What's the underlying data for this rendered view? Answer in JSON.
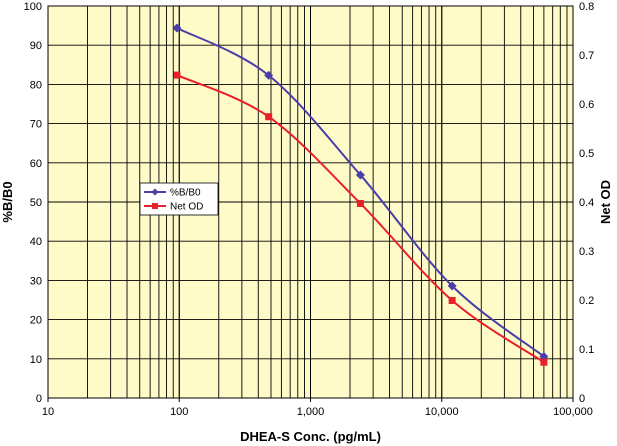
{
  "chart_data": {
    "type": "line",
    "xscale": "log",
    "xlim": [
      10,
      100000
    ],
    "xticks": [
      "10",
      "100",
      "1,000",
      "10,000",
      "100,000"
    ],
    "xlabel": "DHEA-S Conc. (pg/mL)",
    "y_left": {
      "label": "%B/B0",
      "lim": [
        0,
        100
      ],
      "ticks": [
        "0",
        "10",
        "20",
        "30",
        "40",
        "50",
        "60",
        "70",
        "80",
        "90",
        "100"
      ]
    },
    "y_right": {
      "label": "Net OD",
      "lim": [
        0,
        0.8
      ],
      "ticks": [
        "0",
        "0.1",
        "0.2",
        "0.3",
        "0.4",
        "0.5",
        "0.6",
        "0.7",
        "0.8"
      ]
    },
    "grid": true,
    "legend_position": "left-middle",
    "colors": {
      "background": "#fffbc8",
      "grid": "#000000",
      "b_b0": "#4a3fa8",
      "net_od": "#e8202a"
    },
    "series": [
      {
        "name": "%B/B0",
        "axis": "left",
        "marker": "diamond",
        "x": [
          96,
          480,
          2400,
          12000,
          60000
        ],
        "y": [
          94.4,
          82.3,
          56.9,
          28.6,
          10.6
        ]
      },
      {
        "name": "Net OD",
        "axis": "right",
        "marker": "square",
        "x": [
          96,
          480,
          2400,
          12000,
          60000
        ],
        "y": [
          0.659,
          0.574,
          0.397,
          0.199,
          0.073
        ]
      }
    ]
  }
}
